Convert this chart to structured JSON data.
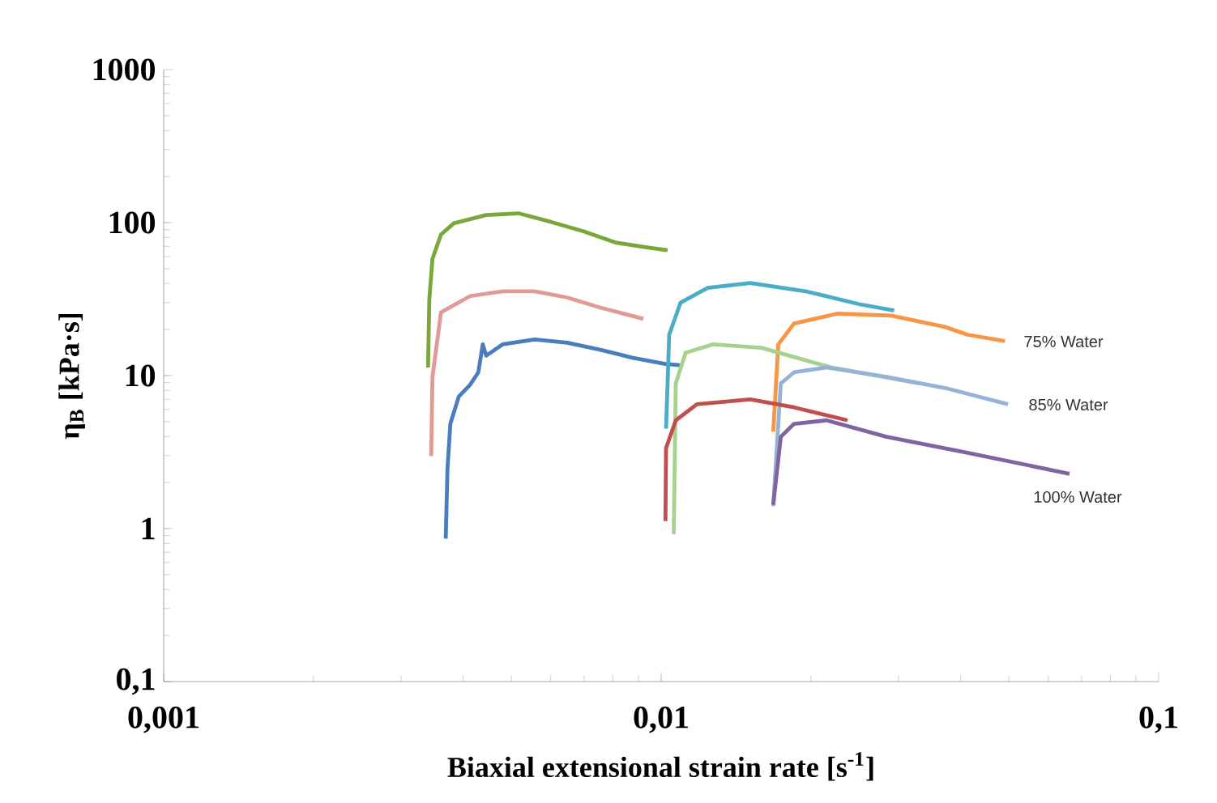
{
  "chart_data": {
    "type": "line",
    "xlabel": "Biaxial extensional strain rate [s$^{-1}$]",
    "ylabel": "η$_{B}$ [kPa·s]",
    "log": "xy",
    "grid": false,
    "marker": "none",
    "line_style": "solid",
    "xlim": [
      0.001,
      0.1
    ],
    "ylim": [
      0.1,
      1000
    ],
    "xticks": [
      {
        "value": 0.001,
        "label": "0,001"
      },
      {
        "value": 0.01,
        "label": "0,01"
      },
      {
        "value": 0.1,
        "label": "0,1"
      }
    ],
    "yticks": [
      {
        "value": 0.1,
        "label": "0,1"
      },
      1,
      10,
      100,
      1000
    ],
    "series": [
      {
        "color": "#7aa63c",
        "x": [
          0.0034,
          0.00342,
          0.00347,
          0.00361,
          0.00383,
          0.00445,
          0.00517,
          0.00601,
          0.00698,
          0.00811,
          0.00942,
          0.0103
        ],
        "values": [
          11.3,
          31.5,
          58,
          83.6,
          99,
          112,
          115,
          101,
          87.7,
          74,
          68.7,
          66
        ]
      },
      {
        "color": "#e29a96",
        "x": [
          0.00345,
          0.00347,
          0.00361,
          0.00413,
          0.0048,
          0.00557,
          0.00647,
          0.00752,
          0.00921
        ],
        "values": [
          2.98,
          9.8,
          25.9,
          33.1,
          35.6,
          35.6,
          32.4,
          27.9,
          23.5
        ]
      },
      {
        "color": "#4a7ebb",
        "x": [
          0.00369,
          0.00372,
          0.00377,
          0.00392,
          0.00413,
          0.00429,
          0.00438,
          0.00445,
          0.0048,
          0.00557,
          0.00647,
          0.00752,
          0.00874,
          0.0102,
          0.0109
        ],
        "values": [
          0.86,
          2.45,
          4.84,
          7.3,
          8.7,
          10.5,
          16,
          13.5,
          16,
          17.2,
          16.4,
          14.8,
          13.1,
          11.9,
          11.7
        ]
      },
      {
        "color": "#4bacc6",
        "x": [
          0.01023,
          0.01038,
          0.01094,
          0.0124,
          0.0151,
          0.0195,
          0.025,
          0.0294
        ],
        "values": [
          4.5,
          18.5,
          30,
          37.4,
          40.3,
          35.6,
          29.3,
          26.6
        ]
      },
      {
        "color": "#f79646",
        "x": [
          0.0168,
          0.0172,
          0.0185,
          0.0226,
          0.029,
          0.0372,
          0.0413,
          0.0491
        ],
        "values": [
          4.3,
          16,
          21.9,
          25.4,
          24.7,
          20.8,
          18.5,
          16.8
        ]
      },
      {
        "color": "#a9d18e",
        "x": [
          0.0106,
          0.0107,
          0.0112,
          0.0127,
          0.0159,
          0.022,
          0.033
        ],
        "values": [
          0.92,
          8.9,
          14.1,
          16,
          15.2,
          11.3,
          8.9
        ]
      },
      {
        "color": "#95b3d7",
        "x": [
          0.0168,
          0.0174,
          0.0185,
          0.0215,
          0.0284,
          0.0372,
          0.0498
        ],
        "values": [
          1.4,
          8.9,
          10.5,
          11.3,
          9.8,
          8.3,
          6.5
        ]
      },
      {
        "color": "#c0504d",
        "x": [
          0.0102,
          0.01023,
          0.0107,
          0.0118,
          0.0151,
          0.0185,
          0.0237
        ],
        "values": [
          1.12,
          3.36,
          5.1,
          6.5,
          7.0,
          6.2,
          5.1
        ]
      },
      {
        "color": "#8064a2",
        "x": [
          0.0168,
          0.0174,
          0.0185,
          0.0215,
          0.0284,
          0.0413,
          0.0662
        ],
        "values": [
          1.43,
          3.98,
          4.84,
          5.1,
          3.98,
          3.13,
          2.28
        ]
      }
    ],
    "annotations": [
      "75% Water",
      "85% Water",
      "100% Water"
    ]
  }
}
